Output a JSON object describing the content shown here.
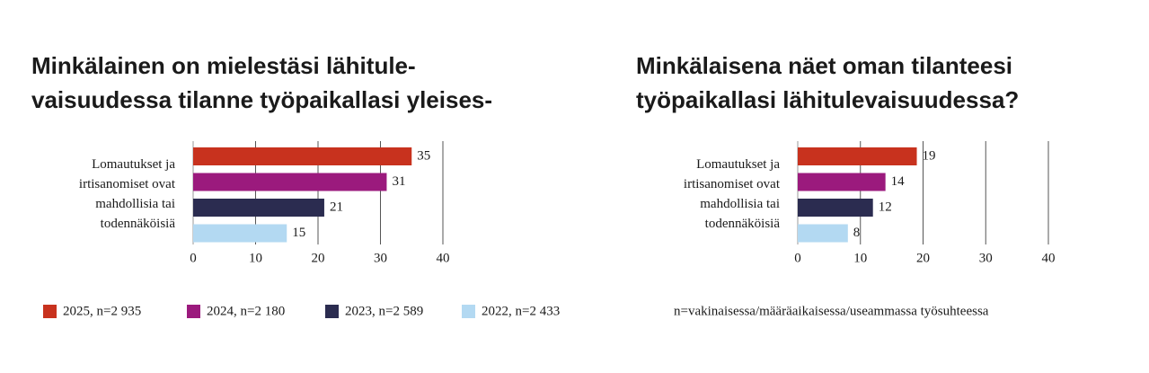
{
  "chart_data": [
    {
      "type": "bar",
      "orientation": "horizontal",
      "title": [
        "Minkälainen on mielestäsi lähitule-",
        "vaisuudessa tilanne työpaikallasi yleises-"
      ],
      "categories": [
        "Lomautukset ja irtisanomiset ovat mahdollisia tai todennäköisiä"
      ],
      "series": [
        {
          "name": "2025, n=2 935",
          "color": "#c8321e",
          "values": [
            35
          ]
        },
        {
          "name": "2024, n=2 180",
          "color": "#9b1a7d",
          "values": [
            31
          ]
        },
        {
          "name": "2023, n=2 589",
          "color": "#2b2c50",
          "values": [
            21
          ]
        },
        {
          "name": "2022, n=2 433",
          "color": "#b3d9f2",
          "values": [
            15
          ]
        }
      ],
      "xlim": [
        0,
        40
      ],
      "xticks": [
        0,
        10,
        20,
        30,
        40
      ],
      "grid": true
    },
    {
      "type": "bar",
      "orientation": "horizontal",
      "title": [
        "Minkälaisena näet oman tilanteesi",
        "työpaikallasi lähitulevaisuudessa?"
      ],
      "categories": [
        "Lomautukset ja irtisanomiset ovat mahdollisia tai todennäköisiä"
      ],
      "series": [
        {
          "color": "#c8321e",
          "values": [
            19
          ]
        },
        {
          "color": "#9b1a7d",
          "values": [
            14
          ]
        },
        {
          "color": "#2b2c50",
          "values": [
            12
          ]
        },
        {
          "color": "#b3d9f2",
          "values": [
            8
          ]
        }
      ],
      "xlim": [
        0,
        40
      ],
      "xticks": [
        0,
        10,
        20,
        30,
        40
      ],
      "grid": true
    }
  ],
  "footnote": "n=vakinaisessa/määräaikaisessa/useammassa työsuhteessa"
}
